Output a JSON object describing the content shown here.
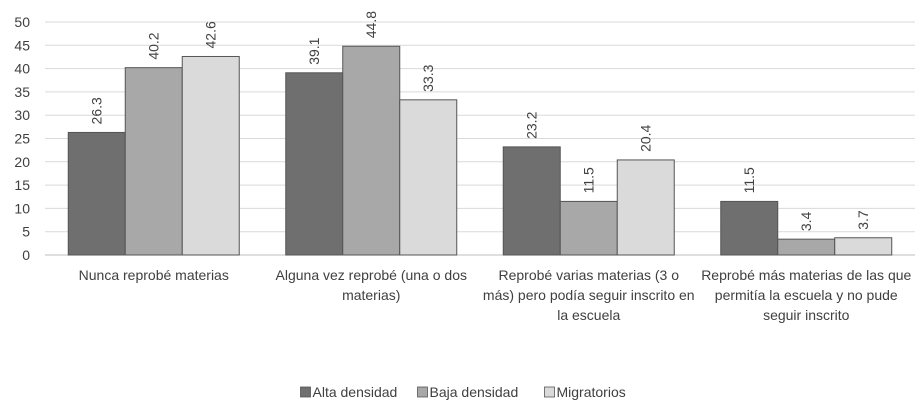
{
  "chart_data": {
    "type": "bar",
    "categories": [
      "Nunca reprobé materias",
      "Alguna vez reprobé (una o dos materias)",
      "Reprobé varias materias (3 o más) pero podía seguir inscrito en la escuela",
      "Reprobé más materias de las que permitía la escuela y no pude seguir inscrito"
    ],
    "series": [
      {
        "name": "Alta densidad",
        "color": "#6f6f6f",
        "values": [
          26.3,
          39.1,
          23.2,
          11.5
        ]
      },
      {
        "name": "Baja densidad",
        "color": "#a8a8a8",
        "values": [
          40.2,
          44.8,
          11.5,
          3.4
        ]
      },
      {
        "name": "Migratorios",
        "color": "#dadada",
        "values": [
          42.6,
          33.3,
          20.4,
          3.7
        ]
      }
    ],
    "ylim": [
      0,
      50
    ],
    "yticks": [
      0,
      5,
      10,
      15,
      20,
      25,
      30,
      35,
      40,
      45,
      50
    ],
    "grid": true
  }
}
